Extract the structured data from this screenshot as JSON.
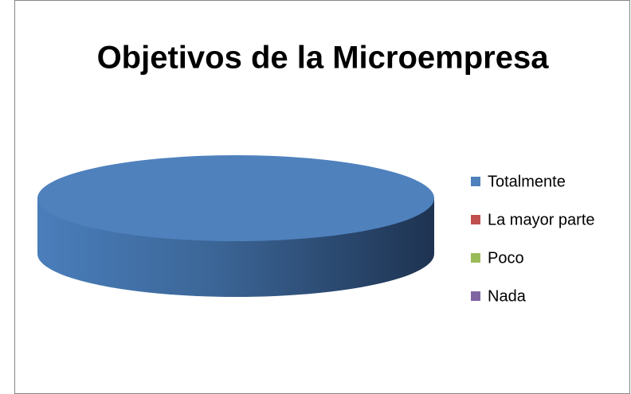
{
  "chart_data": {
    "type": "pie",
    "title": "Objetivos de la Microempresa",
    "categories": [
      "Totalmente",
      "La mayor parte",
      "Poco",
      "Nada"
    ],
    "values": [
      100,
      0,
      0,
      0
    ],
    "colors": [
      "#4f81bd",
      "#c0504d",
      "#9bbb59",
      "#8064a2"
    ],
    "legend": "right"
  }
}
